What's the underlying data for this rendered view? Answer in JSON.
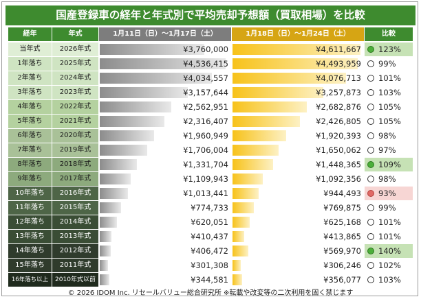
{
  "title": "国産登録車の経年と年式別で平均売却予想額（買取相場）を比較",
  "headers": {
    "age": "経年",
    "model_year": "年式",
    "period1": "1月11日（日）～1月17日（土）",
    "period2": "1月18日（日）～1月24日（土）",
    "ratio": "比較"
  },
  "colors": {
    "title_bg": "#3e8b2f",
    "period1_bar": "#8c8c8c",
    "period2_bar": "#f7c21a",
    "up_highlight": "#c6e2b5",
    "down_highlight": "#f7d6d4",
    "up_mark": "#4caf3a",
    "down_mark": "#e06a66"
  },
  "footer": "© 2026 IDOM Inc. リセールバリュー総合研究所 ※転載や改変等の二次利用を固く禁じます",
  "chart_data": {
    "type": "table",
    "title": "国産登録車の経年と年式別で平均売却予想額（買取相場）を比較",
    "categories": [
      "当年式",
      "1年落ち",
      "2年落ち",
      "3年落ち",
      "4年落ち",
      "5年落ち",
      "6年落ち",
      "7年落ち",
      "8年落ち",
      "9年落ち",
      "10年落ち",
      "11年落ち",
      "12年落ち",
      "13年落ち",
      "14年落ち",
      "15年落ち",
      "16年落ち以上"
    ],
    "model_years": [
      "2026年式",
      "2025年式",
      "2024年式",
      "2023年式",
      "2022年式",
      "2021年式",
      "2020年式",
      "2019年式",
      "2018年式",
      "2017年式",
      "2016年式",
      "2015年式",
      "2014年式",
      "2013年式",
      "2012年式",
      "2011年式",
      "2010年式以前"
    ],
    "series": [
      {
        "name": "1月11日（日）～1月17日（土）",
        "values": [
          3760000,
          4536415,
          4034557,
          3157644,
          2562951,
          2316407,
          1960949,
          1706004,
          1331704,
          1109943,
          1013441,
          774733,
          620051,
          410437,
          406472,
          301308,
          344581
        ]
      },
      {
        "name": "1月18日（日）～1月24日（土）",
        "values": [
          4611667,
          4493959,
          4076713,
          3257873,
          2682876,
          2426805,
          1920393,
          1650062,
          1448365,
          1092356,
          944493,
          769875,
          625168,
          413865,
          569970,
          306246,
          356077
        ]
      }
    ],
    "value_labels_1": [
      "¥3,760,000",
      "¥4,536,415",
      "¥4,034,557",
      "¥3,157,644",
      "¥2,562,951",
      "¥2,316,407",
      "¥1,960,949",
      "¥1,706,004",
      "¥1,331,704",
      "¥1,109,943",
      "¥1,013,441",
      "¥774,733",
      "¥620,051",
      "¥410,437",
      "¥406,472",
      "¥301,308",
      "¥344,581"
    ],
    "value_labels_2": [
      "¥4,611,667",
      "¥4,493,959",
      "¥4,076,713",
      "¥3,257,873",
      "¥2,682,876",
      "¥2,426,805",
      "¥1,920,393",
      "¥1,650,062",
      "¥1,448,365",
      "¥1,092,356",
      "¥944,493",
      "¥769,875",
      "¥625,168",
      "¥413,865",
      "¥569,970",
      "¥306,246",
      "¥356,077"
    ],
    "ratios": [
      "123%",
      "99%",
      "101%",
      "103%",
      "105%",
      "105%",
      "98%",
      "97%",
      "109%",
      "98%",
      "93%",
      "99%",
      "101%",
      "101%",
      "140%",
      "102%",
      "103%"
    ],
    "marks": [
      "up",
      "none",
      "none",
      "none",
      "none",
      "none",
      "none",
      "none",
      "up",
      "none",
      "down",
      "none",
      "none",
      "none",
      "up",
      "none",
      "none"
    ],
    "ylim": [
      0,
      4700000
    ]
  }
}
